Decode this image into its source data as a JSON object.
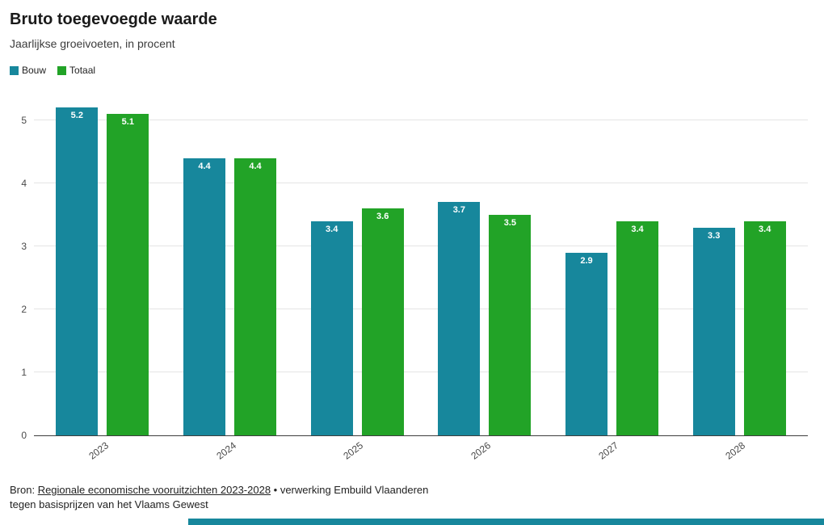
{
  "title": "Bruto toegevoegde waarde",
  "subtitle": "Jaarlijkse groeivoeten, in procent",
  "legend": [
    {
      "label": "Bouw",
      "color": "#17879c"
    },
    {
      "label": "Totaal",
      "color": "#22a327"
    }
  ],
  "chart_data": {
    "type": "bar",
    "categories": [
      "2023",
      "2024",
      "2025",
      "2026",
      "2027",
      "2028"
    ],
    "series": [
      {
        "name": "Bouw",
        "color": "#17879c",
        "values": [
          5.2,
          4.4,
          3.4,
          3.7,
          2.9,
          3.3
        ]
      },
      {
        "name": "Totaal",
        "color": "#22a327",
        "values": [
          5.1,
          4.4,
          3.6,
          3.5,
          3.4,
          3.4
        ]
      }
    ],
    "title": "Bruto toegevoegde waarde",
    "subtitle": "Jaarlijkse groeivoeten, in procent",
    "xlabel": "",
    "ylabel": "",
    "ylim": [
      0,
      5.5
    ],
    "yticks": [
      0,
      1,
      2,
      3,
      4,
      5
    ],
    "grid": true,
    "legend_position": "top-left",
    "value_labels": "inside-top, white"
  },
  "footer": {
    "bron_prefix": "Bron: ",
    "source_link": "Regionale economische vooruitzichten 2023-2028",
    "source_rest": " • verwerking Embuild Vlaanderen",
    "source_line2": "tegen basisprijzen van het Vlaams Gewest"
  },
  "accent_bar_color": "#17879c"
}
